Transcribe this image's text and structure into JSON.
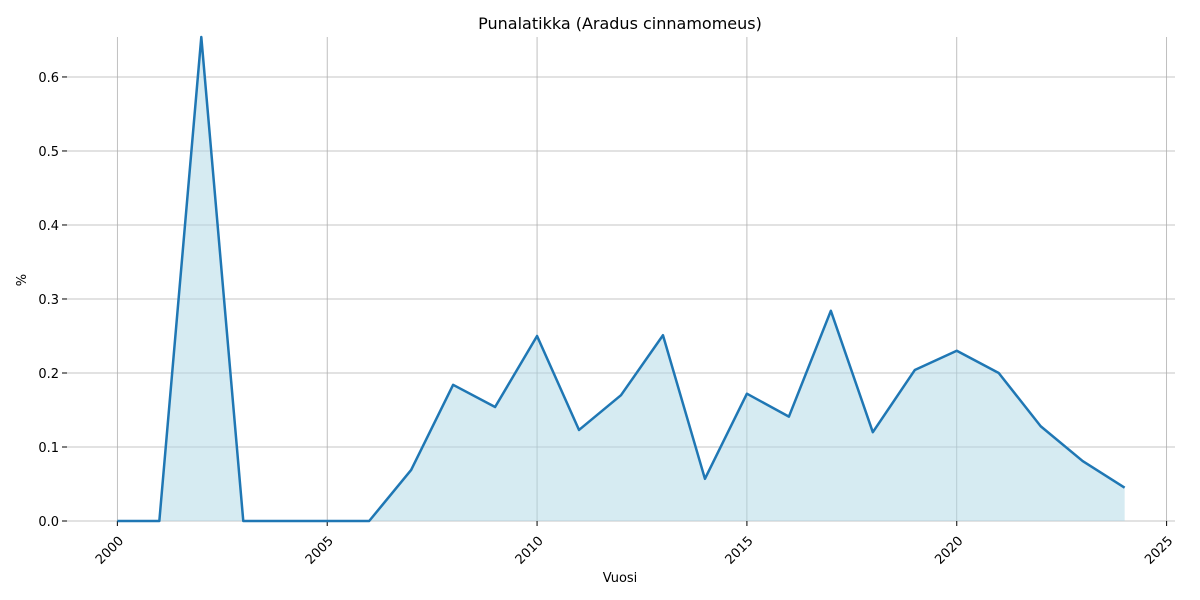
{
  "chart_data": {
    "type": "line",
    "title": "Punalatikka (Aradus cinnamomeus)",
    "x_label": "Vuosi",
    "y_label": "%",
    "x": [
      2000,
      2001,
      2002,
      2003,
      2004,
      2005,
      2006,
      2007,
      2008,
      2009,
      2010,
      2011,
      2012,
      2013,
      2014,
      2015,
      2016,
      2017,
      2018,
      2019,
      2020,
      2021,
      2022,
      2023,
      2024
    ],
    "values": [
      0,
      0,
      0.654,
      0,
      0,
      0,
      0,
      0.069,
      0.184,
      0.154,
      0.25,
      0.123,
      0.17,
      0.251,
      0.057,
      0.172,
      0.141,
      0.284,
      0.12,
      0.204,
      0.23,
      0.2,
      0.128,
      0.081,
      0.045
    ],
    "color": "#1f77b4",
    "fill_color": "#add8e6",
    "fill": true,
    "xlim": [
      1998.8,
      2025.2
    ],
    "ylim": [
      0,
      0.654
    ],
    "xticks": [
      2000,
      2005,
      2010,
      2015,
      2020,
      2025
    ],
    "yticks": [
      {
        "value": 0,
        "label": "0.0"
      },
      0.1,
      0.2,
      0.3,
      0.4,
      0.5,
      0.6
    ],
    "grid": true
  }
}
